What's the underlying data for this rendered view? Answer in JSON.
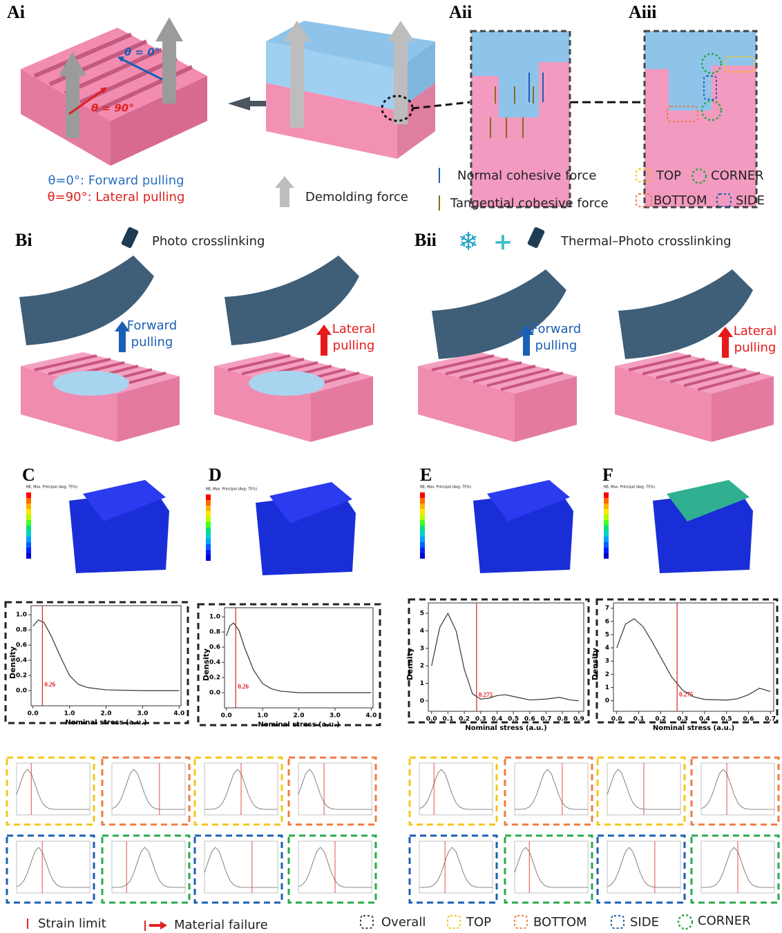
{
  "panels": {
    "ai": "Ai",
    "aii": "Aii",
    "aiii": "Aiii",
    "bi": "Bi",
    "bii": "Bii",
    "c": "C",
    "d": "D",
    "e": "E",
    "f": "F"
  },
  "panel_a": {
    "theta0": "θ = 0°",
    "theta90": "θ = 90°",
    "forward": "θ=0°: Forward pulling",
    "lateral": "θ=90°: Lateral pulling",
    "demolding": "Demolding force",
    "normal": "Normal cohesive force",
    "tangential": "Tangential cohesive force",
    "regions": [
      "TOP",
      "CORNER",
      "BOTTOM",
      "SIDE"
    ]
  },
  "panel_b": {
    "photo": "Photo crosslinking",
    "thermal": "Thermal–Photo crosslinking",
    "pulls": [
      [
        "Forward",
        "pulling"
      ],
      [
        "Lateral",
        "pulling"
      ],
      [
        "Forward",
        "pulling"
      ],
      [
        "Lateral",
        "pulling"
      ]
    ]
  },
  "fe_legend": "NE, Max. Principal (Avg: 75%)",
  "density_plots": [
    {
      "type": "line",
      "y_label": "Density",
      "x_label": "Nominal stress (a.u.)",
      "strain_limit": 0.26,
      "xlim": [
        -0.05,
        4.05
      ],
      "xticks": [
        {
          "value": 0,
          "label": "0.0"
        },
        {
          "value": 1,
          "label": "1.0"
        },
        {
          "value": 2,
          "label": "2.0"
        },
        {
          "value": 3,
          "label": "3.0"
        },
        {
          "value": 4,
          "label": "4.0"
        }
      ],
      "ylim": [
        -0.2,
        1.12
      ],
      "yticks": [
        {
          "value": 0,
          "label": "0.0"
        },
        0.2,
        0.4,
        0.6,
        0.8,
        {
          "value": 1,
          "label": "1.0"
        }
      ],
      "x": [
        0,
        0.15,
        0.3,
        0.5,
        0.75,
        1.0,
        1.25,
        1.5,
        2.0,
        3.0,
        4.0
      ],
      "density": [
        0.85,
        0.93,
        0.9,
        0.72,
        0.45,
        0.2,
        0.08,
        0.04,
        0.01,
        0,
        0
      ]
    },
    {
      "type": "line",
      "y_label": "Density",
      "x_label": "Nominal stress (a.u.)",
      "strain_limit": 0.26,
      "xlim": [
        -0.05,
        4.05
      ],
      "xticks": [
        {
          "value": 0,
          "label": "0.0"
        },
        {
          "value": 1,
          "label": "1.0"
        },
        {
          "value": 2,
          "label": "2.0"
        },
        {
          "value": 3,
          "label": "3.0"
        },
        {
          "value": 4,
          "label": "4.0"
        }
      ],
      "ylim": [
        -0.2,
        1.12
      ],
      "yticks": [
        {
          "value": 0,
          "label": "0.0"
        },
        0.2,
        0.4,
        0.6,
        0.8,
        {
          "value": 1,
          "label": "1.0"
        }
      ],
      "x": [
        0,
        0.1,
        0.2,
        0.35,
        0.5,
        0.75,
        1.0,
        1.25,
        1.5,
        2.0,
        4.0
      ],
      "density": [
        0.75,
        0.88,
        0.92,
        0.82,
        0.6,
        0.3,
        0.12,
        0.05,
        0.02,
        0,
        0
      ]
    },
    {
      "type": "line",
      "y_label": "Density",
      "x_label": "Nominal stress (a.u.)",
      "strain_limit": 0.275,
      "xlim": [
        -0.02,
        0.93
      ],
      "xticks": [
        {
          "value": 0,
          "label": "0.0"
        },
        0.1,
        0.2,
        0.3,
        0.4,
        0.5,
        0.6,
        0.7,
        0.8,
        0.9
      ],
      "ylim": [
        -0.6,
        5.6
      ],
      "yticks": [
        0,
        1,
        2,
        3,
        4,
        5
      ],
      "x": [
        0,
        0.05,
        0.1,
        0.15,
        0.2,
        0.25,
        0.3,
        0.35,
        0.4,
        0.45,
        0.5,
        0.6,
        0.7,
        0.78,
        0.85,
        0.9
      ],
      "density": [
        2,
        4.2,
        5,
        4,
        1.8,
        0.4,
        0.1,
        0.15,
        0.3,
        0.35,
        0.25,
        0.05,
        0.1,
        0.2,
        0.05,
        0
      ]
    },
    {
      "type": "line",
      "y_label": "Density",
      "x_label": "Nominal stress (a.u.)",
      "strain_limit": 0.275,
      "xlim": [
        -0.015,
        0.715
      ],
      "xticks": [
        {
          "value": 0,
          "label": "0.0"
        },
        0.1,
        0.2,
        0.3,
        0.4,
        0.5,
        0.6,
        0.7
      ],
      "ylim": [
        -0.8,
        7.4
      ],
      "yticks": [
        0,
        1,
        2,
        3,
        4,
        5,
        6,
        7
      ],
      "x": [
        0,
        0.04,
        0.08,
        0.12,
        0.16,
        0.2,
        0.25,
        0.3,
        0.35,
        0.4,
        0.5,
        0.55,
        0.6,
        0.65,
        0.7
      ],
      "density": [
        4,
        5.8,
        6.2,
        5.6,
        4.5,
        3.3,
        1.8,
        0.8,
        0.3,
        0.1,
        0.05,
        0.15,
        0.45,
        0.95,
        0.7
      ]
    }
  ],
  "legend": {
    "strain_limit": "Strain limit",
    "material_failure": "Material failure",
    "overall": "Overall",
    "top": "TOP",
    "bottom": "BOTTOM",
    "side": "SIDE",
    "corner": "CORNER"
  }
}
